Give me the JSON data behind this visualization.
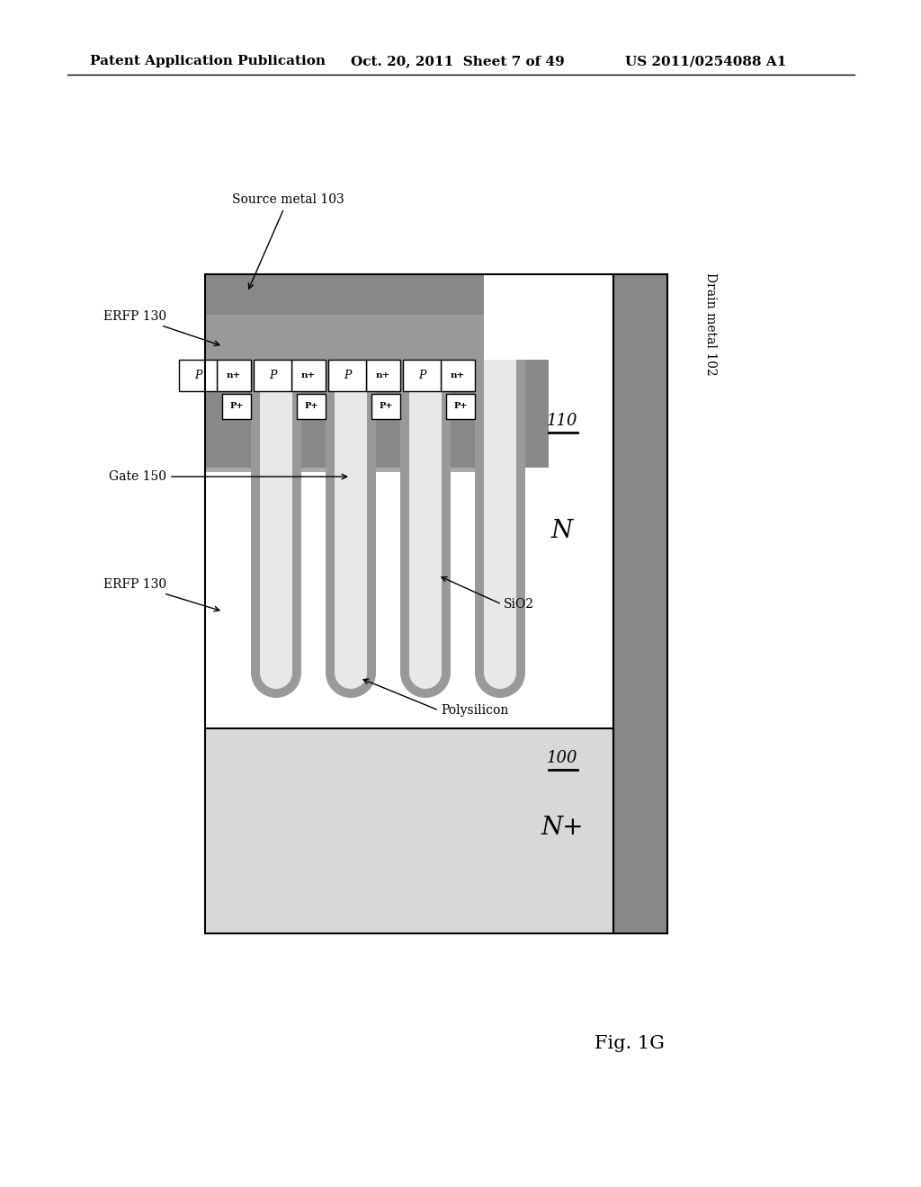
{
  "header_left": "Patent Application Publication",
  "header_mid": "Oct. 20, 2011  Sheet 7 of 49",
  "header_right": "US 2011/0254088 A1",
  "fig_label": "Fig. 1G",
  "bg": "#ffffff",
  "c_dark_gray": "#888888",
  "c_med_gray": "#aaaaaa",
  "c_light_gray": "#cccccc",
  "c_very_light": "#e8e8e8",
  "c_poly": "#e0e0e0",
  "c_white": "#ffffff",
  "c_black": "#000000",
  "c_sio2_wall": "#999999",
  "c_erfp": "#aaaaaa",
  "c_source": "#888888",
  "c_drain": "#888888",
  "c_nplus_sub": "#d8d8d8",
  "c_trench_fill": "#e8e8e8",
  "c_trench_wall": "#999999"
}
